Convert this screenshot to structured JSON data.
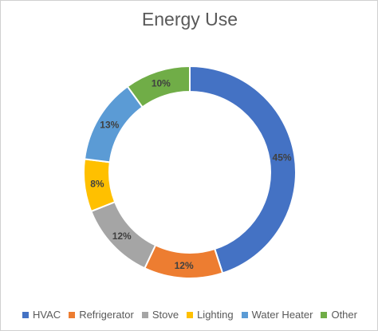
{
  "chart_data": {
    "type": "pie",
    "title": "Energy Use",
    "categories": [
      "HVAC",
      "Refrigerator",
      "Stove",
      "Lighting",
      "Water Heater",
      "Other"
    ],
    "values": [
      45,
      12,
      12,
      8,
      13,
      10
    ],
    "value_labels": [
      "45%",
      "12%",
      "12%",
      "8%",
      "13%",
      "10%"
    ],
    "colors": [
      "#4472C4",
      "#ED7D31",
      "#A5A5A5",
      "#FFC000",
      "#5B9BD5",
      "#70AD47"
    ],
    "donut": true,
    "legend_position": "bottom"
  }
}
